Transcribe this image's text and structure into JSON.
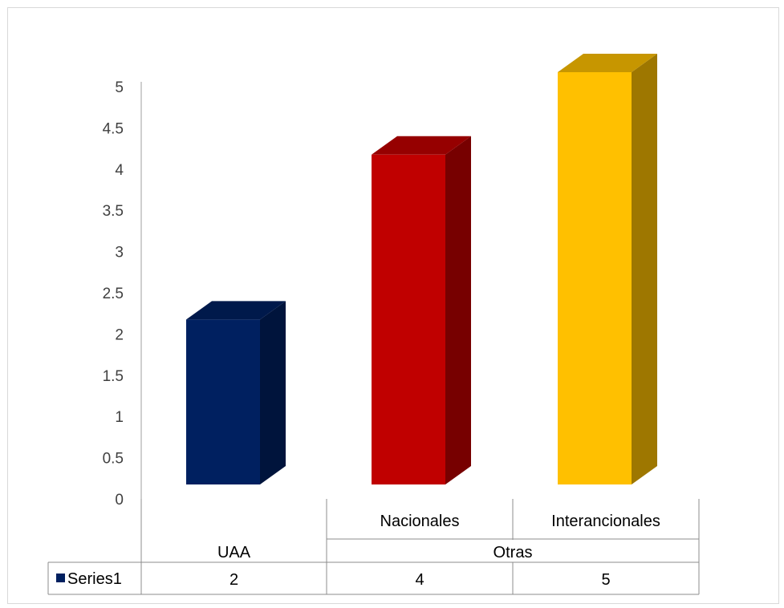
{
  "chart_data": {
    "type": "bar",
    "style": "3d-column",
    "categories": [
      {
        "label": "",
        "group": "UAA"
      },
      {
        "label": "Nacionales",
        "group": "Otras"
      },
      {
        "label": "Interancionales",
        "group": "Otras"
      }
    ],
    "groups": [
      {
        "label": "UAA"
      },
      {
        "label": "Otras"
      }
    ],
    "series": [
      {
        "name": "Series1",
        "values": [
          2,
          4,
          5
        ],
        "colors": [
          "#002060",
          "#C00000",
          "#FFC000"
        ]
      }
    ],
    "data_table": {
      "legend_label": "Series1",
      "legend_color": "#002060",
      "cells": [
        "2",
        "4",
        "5"
      ]
    },
    "yticks": [
      "0",
      "0.5",
      "1",
      "1.5",
      "2",
      "2.5",
      "3",
      "3.5",
      "4",
      "4.5",
      "5"
    ],
    "ylim": [
      0,
      5
    ],
    "grid": false,
    "title": "",
    "xlabel": "",
    "ylabel": ""
  }
}
